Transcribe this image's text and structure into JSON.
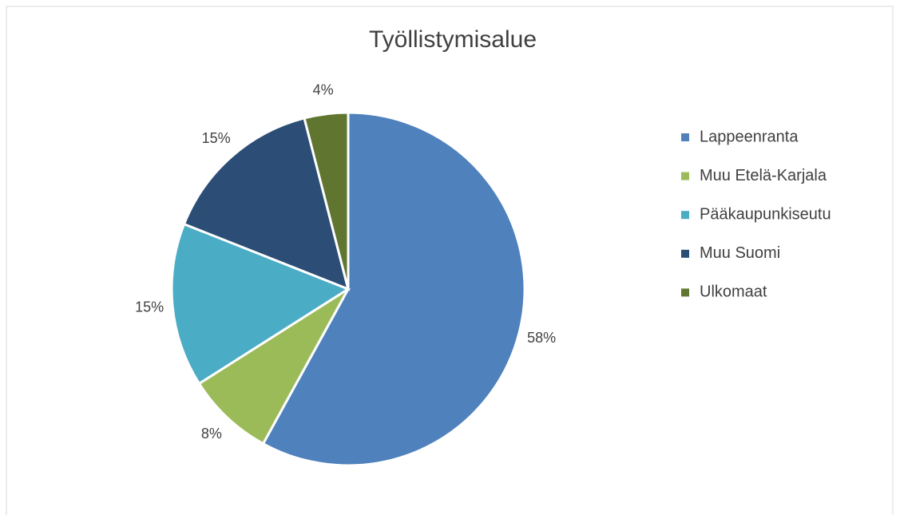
{
  "chart_data": {
    "type": "pie",
    "title": "Työllistymisalue",
    "categories": [
      "Lappeenranta",
      "Muu Etelä-Karjala",
      "Pääkaupunkiseutu",
      "Muu Suomi",
      "Ulkomaat"
    ],
    "values": [
      58,
      8,
      15,
      15,
      4
    ],
    "value_labels": [
      "58%",
      "8%",
      "15%",
      "15%",
      "4%"
    ],
    "colors": [
      "#4f81bd",
      "#9bbb59",
      "#4bacc6",
      "#2c4d75",
      "#5f7530"
    ],
    "legend": "right"
  }
}
